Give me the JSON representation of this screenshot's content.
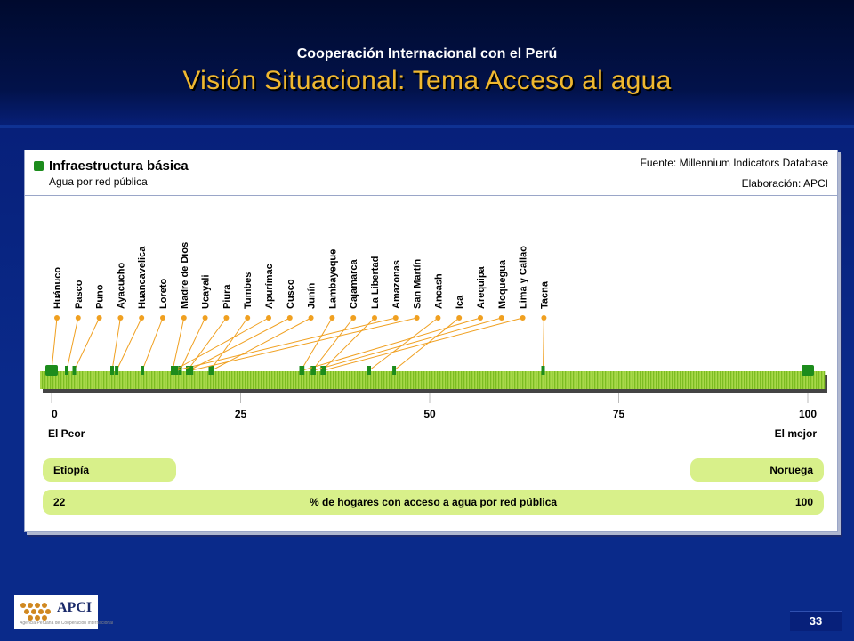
{
  "header": {
    "subtitle": "Cooperación Internacional con el Perú",
    "title": "Visión Situacional: Tema Acceso al agua"
  },
  "panel": {
    "title": "Infraestructura básica",
    "subtitle": "Agua por red pública",
    "source": "Fuente: Millennium Indicators Database",
    "credit": "Elaboración: APCI"
  },
  "chart_data": {
    "type": "scatter",
    "xlim": [
      0,
      100
    ],
    "ticks": [
      0,
      25,
      50,
      75,
      100
    ],
    "min_label": "El Peor",
    "max_label": "El mejor",
    "points": [
      {
        "label": "Huánuco",
        "value": 0
      },
      {
        "label": "Pasco",
        "value": 2
      },
      {
        "label": "Puno",
        "value": 3
      },
      {
        "label": "Ayacucho",
        "value": 8
      },
      {
        "label": "Huancavelica",
        "value": 8.6
      },
      {
        "label": "Loreto",
        "value": 12
      },
      {
        "label": "Madre de Dios",
        "value": 16
      },
      {
        "label": "Ucayali",
        "value": 17
      },
      {
        "label": "Piura",
        "value": 18
      },
      {
        "label": "Tumbes",
        "value": 21
      },
      {
        "label": "Apurímac",
        "value": 16.2
      },
      {
        "label": "Cusco",
        "value": 18.2
      },
      {
        "label": "Junín",
        "value": 21.2
      },
      {
        "label": "Lambayeque",
        "value": 33
      },
      {
        "label": "Cajamarca",
        "value": 34.5
      },
      {
        "label": "La Libertad",
        "value": 35.8
      },
      {
        "label": "Amazonas",
        "value": 16.5
      },
      {
        "label": "San Martín",
        "value": 18.5
      },
      {
        "label": "Ancash",
        "value": 42
      },
      {
        "label": "Ica",
        "value": 45.3
      },
      {
        "label": "Arequipa",
        "value": 33.2
      },
      {
        "label": "Moquegua",
        "value": 34.7
      },
      {
        "label": "Lima y Callao",
        "value": 36
      },
      {
        "label": "Tacna",
        "value": 65
      }
    ],
    "endpoints": [
      0,
      100
    ]
  },
  "bottom": {
    "left_country": "Etiopía",
    "right_country": "Noruega",
    "min_value": "22",
    "axis_title": "% de hogares con acceso a agua por red pública",
    "max_value": "100"
  },
  "footer": {
    "logo_text": "APCI",
    "logo_tagline": "Agencia Peruana de Cooperación Internacional",
    "page_number": "33"
  }
}
